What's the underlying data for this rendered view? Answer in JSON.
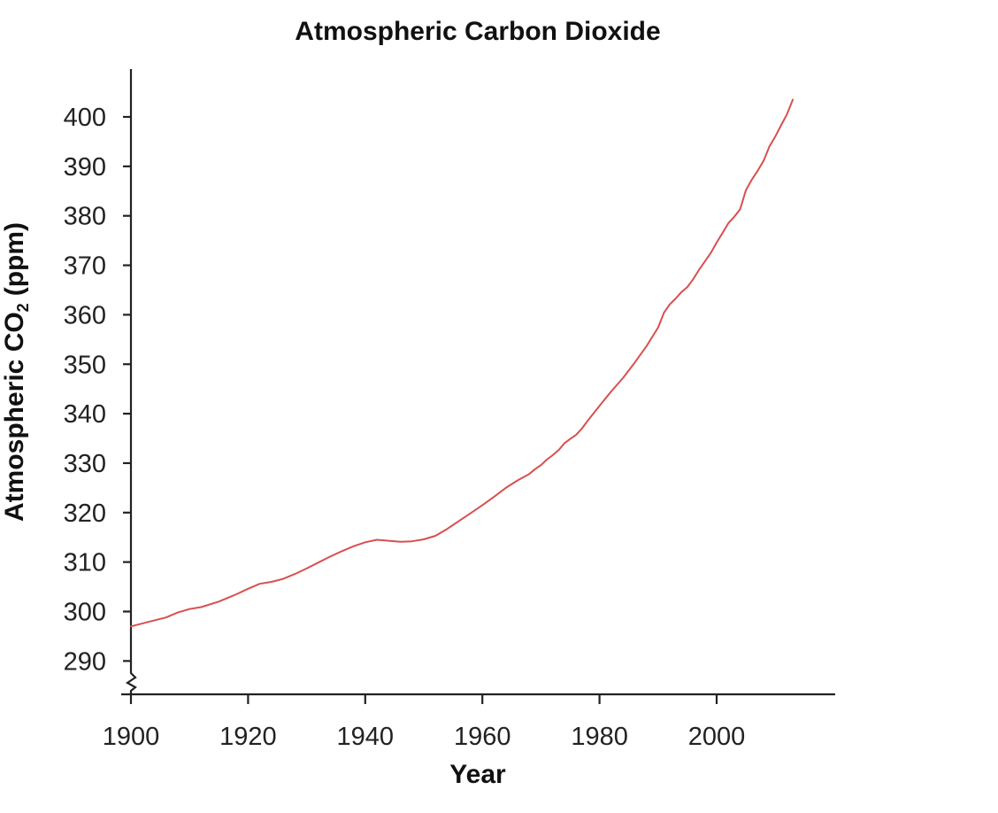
{
  "chart_data": {
    "type": "line",
    "title": "Atmospheric Carbon Dioxide",
    "xlabel": "Year",
    "ylabel": "Atmospheric CO",
    "ylabel_subscript": "2",
    "ylabel_unit": "(ppm)",
    "xlim": [
      1900,
      2020
    ],
    "ylim": [
      285,
      410
    ],
    "xticks": [
      1900,
      1920,
      1940,
      1960,
      1980,
      2000
    ],
    "yticks": [
      290,
      300,
      310,
      320,
      330,
      340,
      350,
      360,
      370,
      380,
      390,
      400
    ],
    "axis_break": "y",
    "grid": false,
    "legend": "none",
    "line_color": "#d94f4f",
    "series": [
      {
        "name": "CO2",
        "x": [
          1900,
          1903,
          1906,
          1908,
          1910,
          1912,
          1915,
          1918,
          1920,
          1922,
          1924,
          1926,
          1928,
          1930,
          1932,
          1934,
          1936,
          1938,
          1940,
          1942,
          1944,
          1946,
          1948,
          1950,
          1952,
          1954,
          1956,
          1958,
          1960,
          1962,
          1964,
          1966,
          1968,
          1969,
          1970,
          1971,
          1972,
          1973,
          1974,
          1975,
          1976,
          1977,
          1978,
          1980,
          1982,
          1984,
          1986,
          1988,
          1989,
          1990,
          1991,
          1992,
          1993,
          1994,
          1995,
          1996,
          1997,
          1998,
          1999,
          2000,
          2001,
          2002,
          2003,
          2004,
          2005,
          2006,
          2007,
          2008,
          2009,
          2010,
          2011,
          2012,
          2013
        ],
        "y": [
          297,
          297.9,
          298.8,
          299.8,
          300.5,
          300.9,
          302,
          303.5,
          304.6,
          305.6,
          306,
          306.6,
          307.6,
          308.7,
          309.9,
          311.1,
          312.2,
          313.2,
          314.0,
          314.5,
          314.3,
          314.1,
          314.2,
          314.6,
          315.3,
          316.7,
          318.3,
          319.9,
          321.5,
          323.2,
          325.0,
          326.5,
          327.8,
          328.8,
          329.6,
          330.7,
          331.6,
          332.6,
          334.0,
          334.9,
          335.7,
          337.0,
          338.6,
          341.6,
          344.5,
          347.2,
          350.3,
          353.6,
          355.5,
          357.4,
          360.4,
          362.1,
          363.3,
          364.6,
          365.6,
          367.2,
          369.1,
          370.8,
          372.5,
          374.6,
          376.5,
          378.5,
          379.8,
          381.3,
          385.2,
          387.3,
          389.1,
          391.1,
          394.0,
          396.0,
          398.3,
          400.5,
          403.5
        ]
      }
    ]
  }
}
